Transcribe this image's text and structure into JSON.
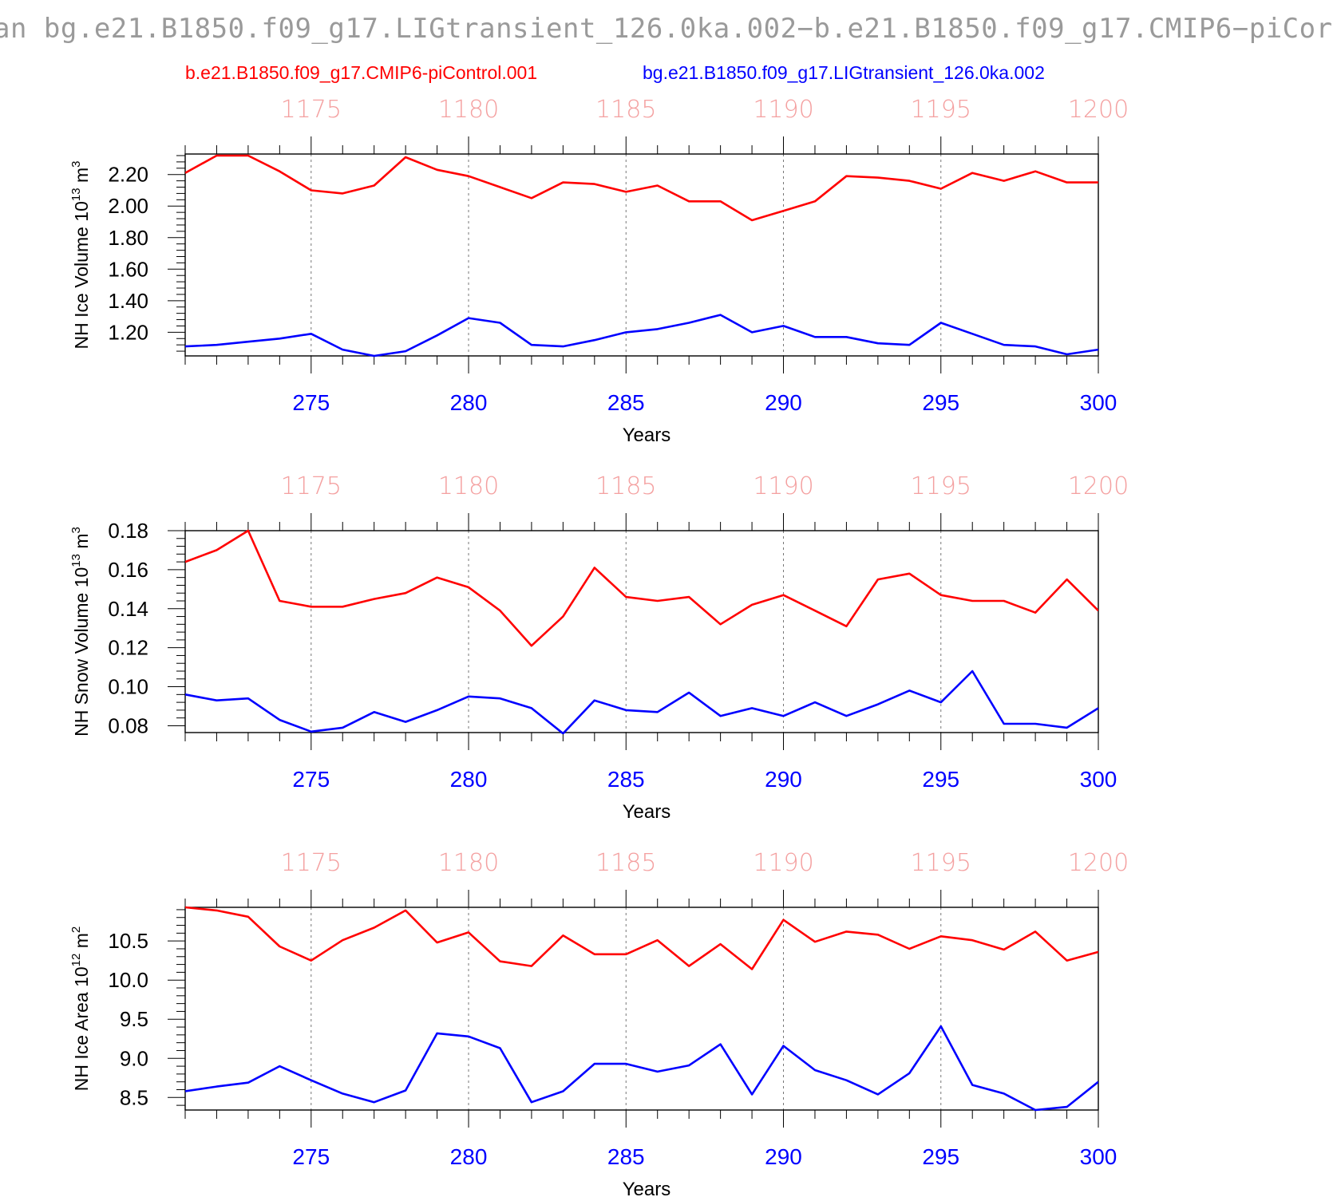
{
  "title": "an bg.e21.B1850.f09_g17.LIGtransient_126.0ka.002−b.e21.B1850.f09_g17.CMIP6−piCor",
  "legend": {
    "red": "b.e21.B1850.f09_g17.CMIP6-piControl.001",
    "blue": "bg.e21.B1850.f09_g17.LIGtransient_126.0ka.002"
  },
  "colors": {
    "series_red": "#ff0000",
    "series_blue": "#0000ff",
    "top_axis": "#f4a0a0"
  },
  "chart_data": [
    {
      "type": "line",
      "ylabel": "NH Ice Volume 10",
      "ylabel_exp": "13",
      "ylabel_unit": "m",
      "ylabel_unit_exp": "3",
      "xlabel": "Years",
      "x": [
        271,
        272,
        273,
        274,
        275,
        276,
        277,
        278,
        279,
        280,
        281,
        282,
        283,
        284,
        285,
        286,
        287,
        288,
        289,
        290,
        291,
        292,
        293,
        294,
        295,
        296,
        297,
        298,
        299,
        300
      ],
      "xlim": [
        271,
        300
      ],
      "ylim": [
        1.05,
        2.33
      ],
      "yticks": [
        1.2,
        1.4,
        1.6,
        1.8,
        2.0,
        2.2
      ],
      "ytick_labels": [
        "1.20",
        "1.40",
        "1.60",
        "1.80",
        "2.00",
        "2.20"
      ],
      "bottom_ticks": [
        275,
        280,
        285,
        290,
        295,
        300
      ],
      "bottom_tick_labels": [
        "275",
        "280",
        "285",
        "290",
        "295",
        "300"
      ],
      "top_tick_labels": [
        "1175",
        "1180",
        "1185",
        "1190",
        "1195",
        "1200"
      ],
      "series": [
        {
          "name": "b.e21.B1850.f09_g17.CMIP6-piControl.001",
          "color": "#ff0000",
          "values": [
            2.21,
            2.32,
            2.32,
            2.22,
            2.1,
            2.08,
            2.13,
            2.31,
            2.23,
            2.19,
            2.12,
            2.05,
            2.15,
            2.14,
            2.09,
            2.13,
            2.03,
            2.03,
            1.91,
            1.97,
            2.03,
            2.19,
            2.18,
            2.16,
            2.11,
            2.21,
            2.16,
            2.22,
            2.15,
            2.15
          ]
        },
        {
          "name": "bg.e21.B1850.f09_g17.LIGtransient_126.0ka.002",
          "color": "#0000ff",
          "values": [
            1.11,
            1.12,
            1.14,
            1.16,
            1.19,
            1.09,
            1.05,
            1.08,
            1.18,
            1.29,
            1.26,
            1.12,
            1.11,
            1.15,
            1.2,
            1.22,
            1.26,
            1.31,
            1.2,
            1.24,
            1.17,
            1.17,
            1.13,
            1.12,
            1.26,
            1.19,
            1.12,
            1.11,
            1.06,
            1.09
          ]
        }
      ]
    },
    {
      "type": "line",
      "ylabel": "NH Snow Volume 10",
      "ylabel_exp": "13",
      "ylabel_unit": "m",
      "ylabel_unit_exp": "3",
      "xlabel": "Years",
      "x": [
        271,
        272,
        273,
        274,
        275,
        276,
        277,
        278,
        279,
        280,
        281,
        282,
        283,
        284,
        285,
        286,
        287,
        288,
        289,
        290,
        291,
        292,
        293,
        294,
        295,
        296,
        297,
        298,
        299,
        300
      ],
      "xlim": [
        271,
        300
      ],
      "ylim": [
        0.0765,
        0.18
      ],
      "yticks": [
        0.08,
        0.1,
        0.12,
        0.14,
        0.16,
        0.18
      ],
      "ytick_labels": [
        "0.08",
        "0.10",
        "0.12",
        "0.14",
        "0.16",
        "0.18"
      ],
      "bottom_ticks": [
        275,
        280,
        285,
        290,
        295,
        300
      ],
      "bottom_tick_labels": [
        "275",
        "280",
        "285",
        "290",
        "295",
        "300"
      ],
      "top_tick_labels": [
        "1175",
        "1180",
        "1185",
        "1190",
        "1195",
        "1200"
      ],
      "series": [
        {
          "name": "b.e21.B1850.f09_g17.CMIP6-piControl.001",
          "color": "#ff0000",
          "values": [
            0.164,
            0.17,
            0.18,
            0.144,
            0.141,
            0.141,
            0.145,
            0.148,
            0.156,
            0.151,
            0.139,
            0.121,
            0.136,
            0.161,
            0.146,
            0.144,
            0.146,
            0.132,
            0.142,
            0.147,
            0.139,
            0.131,
            0.155,
            0.158,
            0.147,
            0.144,
            0.144,
            0.138,
            0.155,
            0.139
          ]
        },
        {
          "name": "bg.e21.B1850.f09_g17.LIGtransient_126.0ka.002",
          "color": "#0000ff",
          "values": [
            0.096,
            0.093,
            0.094,
            0.083,
            0.077,
            0.079,
            0.087,
            0.082,
            0.088,
            0.095,
            0.094,
            0.089,
            0.076,
            0.093,
            0.088,
            0.087,
            0.097,
            0.085,
            0.089,
            0.085,
            0.092,
            0.085,
            0.091,
            0.098,
            0.092,
            0.108,
            0.081,
            0.081,
            0.079,
            0.089
          ]
        }
      ]
    },
    {
      "type": "line",
      "ylabel": "NH Ice Area 10",
      "ylabel_exp": "12",
      "ylabel_unit": "m",
      "ylabel_unit_exp": "2",
      "xlabel": "Years",
      "x": [
        271,
        272,
        273,
        274,
        275,
        276,
        277,
        278,
        279,
        280,
        281,
        282,
        283,
        284,
        285,
        286,
        287,
        288,
        289,
        290,
        291,
        292,
        293,
        294,
        295,
        296,
        297,
        298,
        299,
        300
      ],
      "xlim": [
        271,
        300
      ],
      "ylim": [
        8.34,
        10.93
      ],
      "yticks": [
        8.5,
        9.0,
        9.5,
        10.0,
        10.5
      ],
      "ytick_labels": [
        "8.5",
        "9.0",
        "9.5",
        "10.0",
        "10.5"
      ],
      "bottom_ticks": [
        275,
        280,
        285,
        290,
        295,
        300
      ],
      "bottom_tick_labels": [
        "275",
        "280",
        "285",
        "290",
        "295",
        "300"
      ],
      "top_tick_labels": [
        "1175",
        "1180",
        "1185",
        "1190",
        "1195",
        "1200"
      ],
      "series": [
        {
          "name": "b.e21.B1850.f09_g17.CMIP6-piControl.001",
          "color": "#ff0000",
          "values": [
            10.93,
            10.89,
            10.81,
            10.43,
            10.25,
            10.51,
            10.67,
            10.89,
            10.48,
            10.61,
            10.24,
            10.18,
            10.57,
            10.33,
            10.33,
            10.51,
            10.18,
            10.46,
            10.14,
            10.77,
            10.49,
            10.62,
            10.58,
            10.4,
            10.56,
            10.51,
            10.39,
            10.62,
            10.25,
            10.36
          ]
        },
        {
          "name": "bg.e21.B1850.f09_g17.LIGtransient_126.0ka.002",
          "color": "#0000ff",
          "values": [
            8.58,
            8.64,
            8.69,
            8.9,
            8.72,
            8.55,
            8.44,
            8.59,
            9.32,
            9.28,
            9.13,
            8.44,
            8.58,
            8.93,
            8.93,
            8.83,
            8.91,
            9.18,
            8.54,
            9.16,
            8.85,
            8.72,
            8.54,
            8.81,
            9.41,
            8.66,
            8.55,
            8.34,
            8.38,
            8.7
          ]
        }
      ]
    }
  ]
}
